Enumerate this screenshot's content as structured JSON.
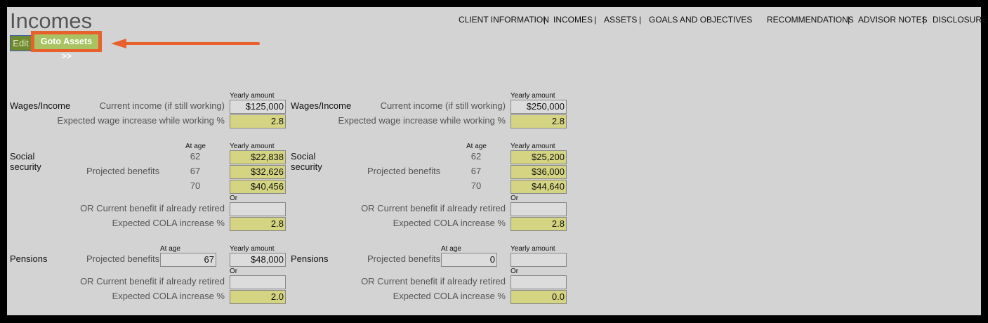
{
  "title": "Incomes",
  "nav": [
    "CLIENT INFORMATION",
    "INCOMES",
    "ASSETS",
    "GOALS AND OBJECTIVES",
    "RECOMMENDATIONS",
    "ADVISOR NOTES",
    "DISCLOSURE"
  ],
  "buttons": {
    "edit": "Edit",
    "goto": "Goto Assets >>"
  },
  "labels": {
    "wages": "Wages/Income",
    "current_income": "Current income (if still working)",
    "wage_increase": "Expected wage increase while working %",
    "yearly": "Yearly amount",
    "at_age": "At age",
    "social": "Social security",
    "projected": "Projected benefits",
    "or": "Or",
    "or_current": "OR Current benefit if already retired",
    "cola": "Expected COLA increase %",
    "pensions": "Pensions"
  },
  "clients": [
    {
      "current_income": "$125,000",
      "wage_increase": "2.8",
      "ss": [
        {
          "age": "62",
          "amount": "$22,838"
        },
        {
          "age": "67",
          "amount": "$32,626"
        },
        {
          "age": "70",
          "amount": "$40,456"
        }
      ],
      "ss_current": "",
      "ss_cola": "2.8",
      "pension_age": "67",
      "pension_amount": "$48,000",
      "pension_current": "",
      "pension_cola": "2.0"
    },
    {
      "current_income": "$250,000",
      "wage_increase": "2.8",
      "ss": [
        {
          "age": "62",
          "amount": "$25,200"
        },
        {
          "age": "67",
          "amount": "$36,000"
        },
        {
          "age": "70",
          "amount": "$44,640"
        }
      ],
      "ss_current": "",
      "ss_cola": "2.8",
      "pension_age": "0",
      "pension_amount": "",
      "pension_current": "",
      "pension_cola": "0.0"
    }
  ],
  "colors": {
    "accent_input": "#d4d482",
    "highlight": "#e8602c"
  }
}
